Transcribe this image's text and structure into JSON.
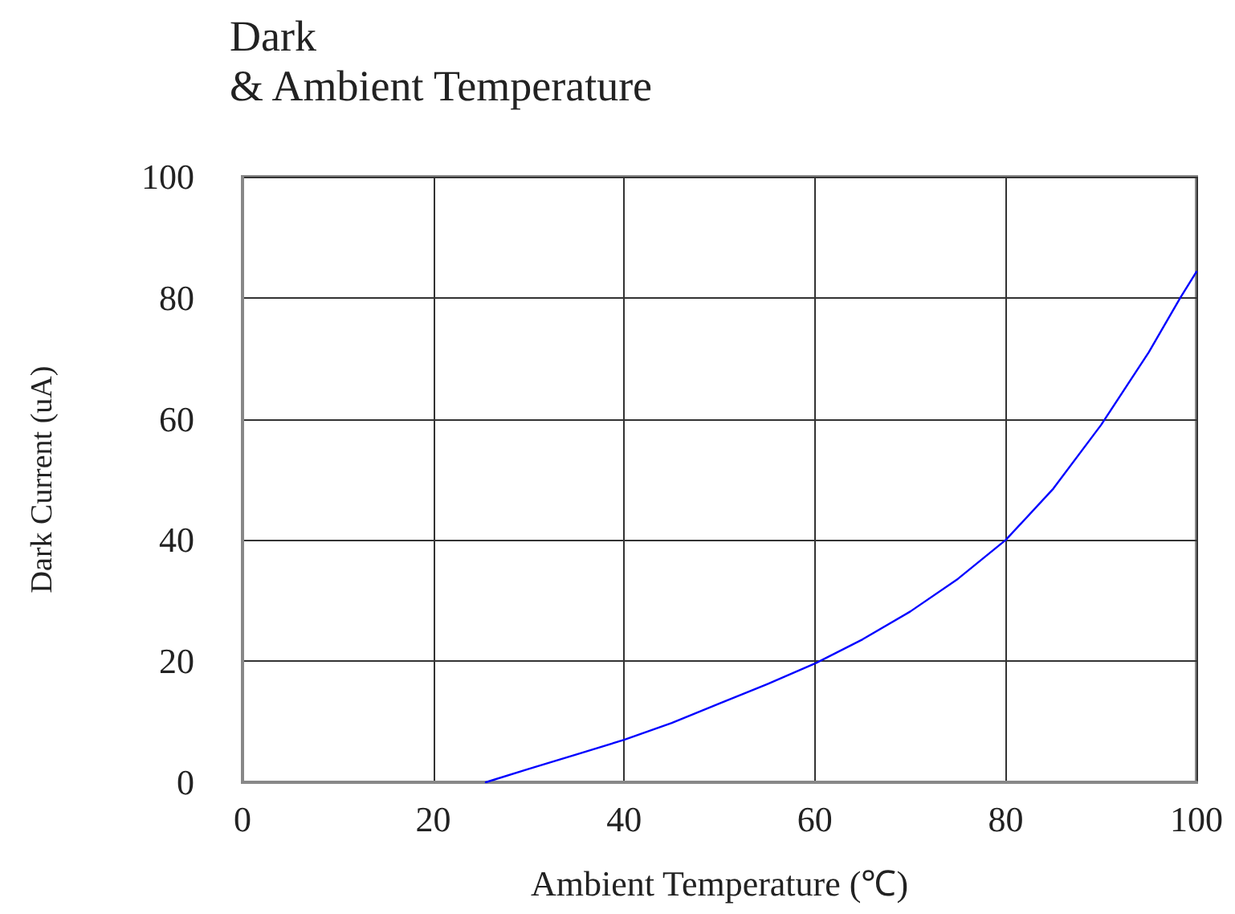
{
  "chart_data": {
    "type": "line",
    "title": "Dark",
    "subtitle": "& Ambient Temperature",
    "xlabel": "Ambient Temperature (℃)",
    "ylabel": "Dark Current (uA)",
    "x": [
      25.5,
      30,
      35,
      40,
      45,
      50,
      55,
      60,
      65,
      70,
      75,
      80,
      85,
      90,
      95,
      98.3,
      100
    ],
    "series": [
      {
        "color": "#0000ff",
        "values": [
          0,
          2.2,
          4.6,
          7,
          9.8,
          13,
          16.2,
          19.6,
          23.6,
          28.2,
          33.6,
          40,
          48.5,
          59,
          71,
          80,
          84.3
        ]
      }
    ],
    "xlim": [
      0,
      100
    ],
    "xticks": [
      0,
      20,
      40,
      60,
      80,
      100
    ],
    "ylim": [
      0,
      100
    ],
    "yticks": [
      0,
      20,
      40,
      60,
      80,
      100
    ],
    "grid": true,
    "marker": "none",
    "line_style": "solid"
  }
}
